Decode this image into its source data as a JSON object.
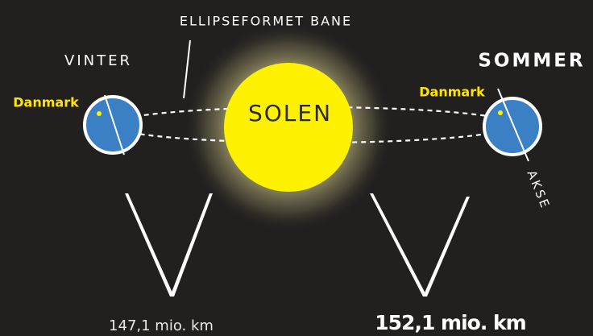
{
  "labels": {
    "orbit": "ELLIPSEFORMET BANE",
    "winter": "VINTER",
    "summer": "SOMMER",
    "sun": "SOLEN",
    "axis": "AKSE",
    "denmark_winter": "Danmark",
    "denmark_summer": "Danmark",
    "distance_winter": "147,1 mio. km",
    "distance_summer": "152,1 mio. km"
  }
}
